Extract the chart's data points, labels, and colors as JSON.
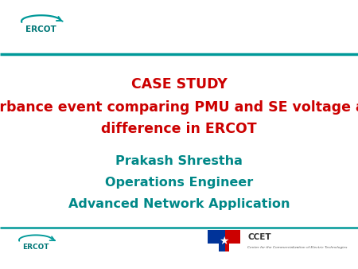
{
  "bg_color": "#ffffff",
  "line_color": "#009999",
  "title_line1": "CASE STUDY",
  "title_line2": "Disturbance event comparing PMU and SE voltage angle",
  "title_line3": "difference in ERCOT",
  "title_color": "#cc0000",
  "subtitle_line1": "Prakash Shrestha",
  "subtitle_line2": "Operations Engineer",
  "subtitle_line3": "Advanced Network Application",
  "subtitle_color": "#008888",
  "ercot_text_color": "#007777",
  "ercot_arc_color": "#009999",
  "ccet_label": "CCET",
  "ccet_sublabel": "Center for the Commercialization of Electric Technologies",
  "title_fontsize": 12.5,
  "subtitle_fontsize": 11.5
}
